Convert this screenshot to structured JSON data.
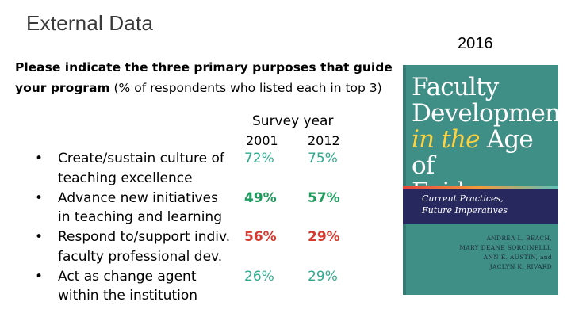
{
  "slide": {
    "title": "External Data",
    "question_bold": "Please indicate the three primary purposes that guide your program",
    "question_normal": " (% of respondents who listed each in top 3)"
  },
  "table": {
    "header": "Survey year",
    "years": [
      "2001",
      "2012"
    ],
    "bullet": "•",
    "rows": [
      {
        "line1": "Create/sustain culture of",
        "line2": "teaching excellence",
        "v2001": "72%",
        "v2012": "75%",
        "c2001": "#2eab8c",
        "c2012": "#2eab8c"
      },
      {
        "line1": "Advance new initiatives",
        "line2": "in teaching and learning",
        "v2001": "49%",
        "v2012": "57%",
        "c2001": "#1e9c5e",
        "c2012": "#1e9c5e"
      },
      {
        "line1": "Respond to/support indiv.",
        "line2": "faculty professional dev.",
        "v2001": "56%",
        "v2012": "29%",
        "c2001": "#d63a2f",
        "c2012": "#d63a2f"
      },
      {
        "line1": "Act as change agent",
        "line2": "within the institution",
        "v2001": "26%",
        "v2012": "29%",
        "c2001": "#2eab8c",
        "c2012": "#2eab8c"
      }
    ]
  },
  "book": {
    "year": "2016",
    "title_line1": "Faculty",
    "title_line2": "Development",
    "title_line3_italic": "in the",
    "title_line3_word": "Age of",
    "title_line4": "Evidence",
    "subtitle_line1": "Current Practices,",
    "subtitle_line2": "Future Imperatives",
    "authors": [
      "ANDREA L. BEACH,",
      "MARY DEANE SORCINELLI,",
      "ANN E. AUSTIN, and",
      "JACLYN K. RIVARD"
    ],
    "colors": {
      "cover": "#3f8f87",
      "band": "#27285e",
      "accent": "#ffd33f"
    }
  }
}
